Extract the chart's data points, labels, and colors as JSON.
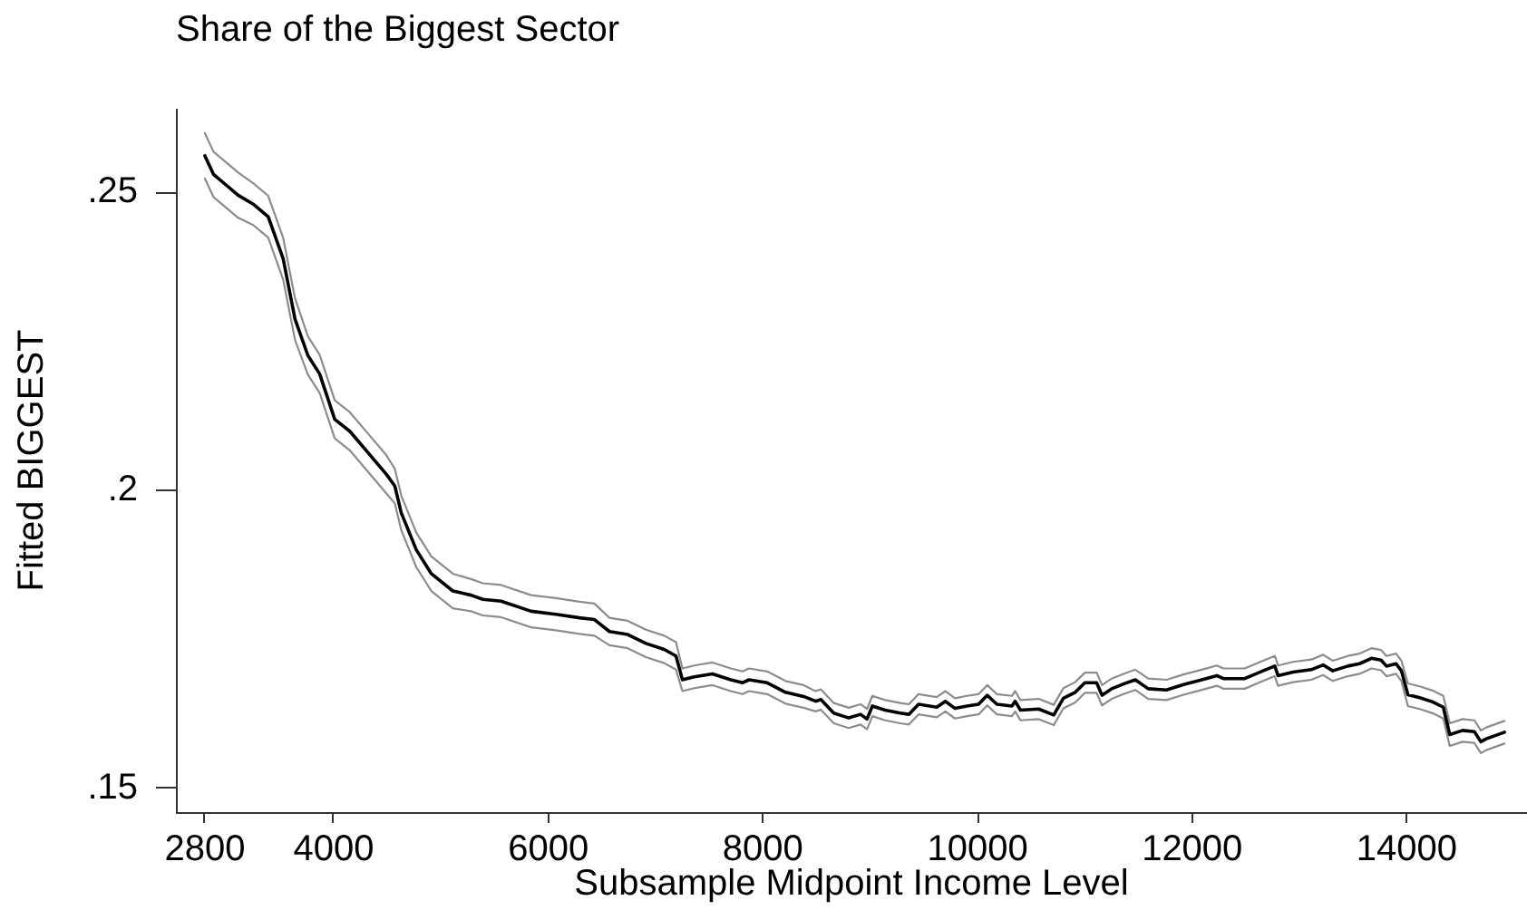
{
  "chart_data": {
    "type": "line",
    "title": "Share of the Biggest Sector",
    "xlabel": "Subsample Midpoint Income Level",
    "ylabel": "Fitted BIGGEST",
    "xlim": [
      2530,
      15120
    ],
    "xticks": [
      2800,
      4000,
      6000,
      8000,
      10000,
      12000,
      14000
    ],
    "ylim": [
      0.146,
      0.264
    ],
    "yticks": [
      {
        "value": 0.15,
        "label": ".15"
      },
      {
        "value": 0.2,
        "label": ".2"
      },
      {
        "value": 0.25,
        "label": ".25"
      }
    ],
    "x": [
      2800,
      2880,
      3110,
      3250,
      3390,
      3530,
      3640,
      3760,
      3870,
      4010,
      4150,
      4320,
      4490,
      4570,
      4630,
      4770,
      4910,
      5110,
      5280,
      5390,
      5560,
      5840,
      6070,
      6290,
      6430,
      6570,
      6740,
      6910,
      7080,
      7190,
      7250,
      7360,
      7530,
      7700,
      7810,
      7870,
      8040,
      8210,
      8380,
      8490,
      8540,
      8660,
      8800,
      8910,
      8970,
      9020,
      9140,
      9280,
      9360,
      9450,
      9620,
      9700,
      9790,
      9900,
      10010,
      10090,
      10180,
      10320,
      10350,
      10400,
      10570,
      10710,
      10800,
      10910,
      11000,
      11110,
      11160,
      11250,
      11360,
      11470,
      11590,
      11760,
      11920,
      12090,
      12230,
      12290,
      12490,
      12660,
      12770,
      12800,
      12940,
      13110,
      13220,
      13310,
      13450,
      13560,
      13670,
      13760,
      13810,
      13900,
      13950,
      14010,
      14120,
      14240,
      14340,
      14400,
      14520,
      14630,
      14690,
      14740,
      14910
    ],
    "series": [
      {
        "color": "#000000",
        "values": [
          0.2561,
          0.253,
          0.2495,
          0.248,
          0.2459,
          0.2388,
          0.2287,
          0.2226,
          0.2195,
          0.2119,
          0.2099,
          0.2063,
          0.2027,
          0.2007,
          0.1962,
          0.19,
          0.186,
          0.1831,
          0.1824,
          0.1817,
          0.1814,
          0.1797,
          0.1792,
          0.1786,
          0.1783,
          0.1763,
          0.1758,
          0.1743,
          0.1733,
          0.1722,
          0.1682,
          0.1687,
          0.1692,
          0.1682,
          0.1677,
          0.1682,
          0.1677,
          0.1661,
          0.1654,
          0.1646,
          0.1649,
          0.1626,
          0.1618,
          0.1624,
          0.1616,
          0.1638,
          0.1631,
          0.1626,
          0.1624,
          0.1641,
          0.1636,
          0.1646,
          0.1634,
          0.1638,
          0.1641,
          0.1656,
          0.1641,
          0.1638,
          0.1646,
          0.1631,
          0.1633,
          0.1623,
          0.1651,
          0.1661,
          0.1677,
          0.1677,
          0.1656,
          0.1667,
          0.1675,
          0.1682,
          0.1667,
          0.1665,
          0.1674,
          0.1682,
          0.1689,
          0.1684,
          0.1684,
          0.1697,
          0.1705,
          0.1689,
          0.1695,
          0.1699,
          0.1707,
          0.1697,
          0.1705,
          0.1709,
          0.1718,
          0.1715,
          0.1705,
          0.1709,
          0.1697,
          0.1657,
          0.1652,
          0.1645,
          0.1636,
          0.159,
          0.1597,
          0.1595,
          0.1578,
          0.1583,
          0.1594
        ]
      },
      {
        "color": "#8c8c8c",
        "values": [
          0.2599,
          0.2568,
          0.2533,
          0.2515,
          0.2494,
          0.2423,
          0.2322,
          0.2258,
          0.2227,
          0.2151,
          0.2131,
          0.2095,
          0.2059,
          0.2036,
          0.1991,
          0.1929,
          0.1889,
          0.186,
          0.1851,
          0.1844,
          0.1841,
          0.1824,
          0.1819,
          0.1813,
          0.181,
          0.1786,
          0.1781,
          0.1766,
          0.1756,
          0.1745,
          0.1701,
          0.1706,
          0.1711,
          0.1701,
          0.1696,
          0.1701,
          0.1696,
          0.168,
          0.1673,
          0.1663,
          0.1666,
          0.1643,
          0.1635,
          0.1641,
          0.1633,
          0.1655,
          0.1648,
          0.1643,
          0.1641,
          0.1658,
          0.1653,
          0.1663,
          0.1651,
          0.1655,
          0.1658,
          0.1673,
          0.1658,
          0.1655,
          0.1663,
          0.1648,
          0.165,
          0.164,
          0.1668,
          0.1678,
          0.1694,
          0.1694,
          0.1673,
          0.1684,
          0.1692,
          0.1699,
          0.1684,
          0.1682,
          0.1691,
          0.1699,
          0.1706,
          0.1701,
          0.1701,
          0.1714,
          0.1722,
          0.1706,
          0.1712,
          0.1716,
          0.1724,
          0.1714,
          0.1722,
          0.1726,
          0.1735,
          0.1732,
          0.1722,
          0.1726,
          0.1714,
          0.1676,
          0.1671,
          0.1664,
          0.1655,
          0.1609,
          0.1616,
          0.1614,
          0.1597,
          0.1602,
          0.1613
        ]
      },
      {
        "color": "#8c8c8c",
        "values": [
          0.2523,
          0.2492,
          0.2457,
          0.2445,
          0.2424,
          0.2353,
          0.2252,
          0.2194,
          0.2163,
          0.2087,
          0.2067,
          0.2031,
          0.1995,
          0.1978,
          0.1933,
          0.1871,
          0.1831,
          0.1802,
          0.1797,
          0.179,
          0.1787,
          0.177,
          0.1765,
          0.1759,
          0.1756,
          0.174,
          0.1735,
          0.172,
          0.171,
          0.1699,
          0.1663,
          0.1668,
          0.1673,
          0.1663,
          0.1658,
          0.1663,
          0.1658,
          0.1642,
          0.1635,
          0.1629,
          0.1632,
          0.1609,
          0.1601,
          0.1607,
          0.1599,
          0.1621,
          0.1614,
          0.1609,
          0.1607,
          0.1624,
          0.1619,
          0.1629,
          0.1617,
          0.1621,
          0.1624,
          0.1639,
          0.1624,
          0.1621,
          0.1629,
          0.1614,
          0.1616,
          0.1606,
          0.1634,
          0.1644,
          0.166,
          0.166,
          0.1639,
          0.165,
          0.1658,
          0.1665,
          0.165,
          0.1648,
          0.1657,
          0.1665,
          0.1672,
          0.1667,
          0.1667,
          0.168,
          0.1688,
          0.1672,
          0.1678,
          0.1682,
          0.169,
          0.168,
          0.1688,
          0.1692,
          0.1701,
          0.1698,
          0.1688,
          0.1692,
          0.168,
          0.1638,
          0.1633,
          0.1626,
          0.1617,
          0.1571,
          0.1578,
          0.1576,
          0.1559,
          0.1564,
          0.1575
        ]
      }
    ]
  }
}
